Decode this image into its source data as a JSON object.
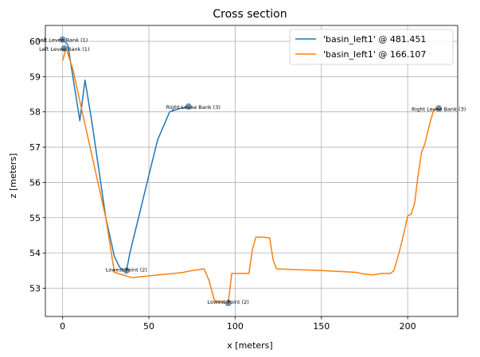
{
  "chart_data": {
    "type": "line",
    "title": "Cross section",
    "xlabel": "x [meters]",
    "ylabel": "z [meters]",
    "xlim": [
      -10,
      229
    ],
    "ylim": [
      52.2,
      60.45
    ],
    "xticks": [
      0,
      50,
      100,
      150,
      200
    ],
    "yticks": [
      53,
      54,
      55,
      56,
      57,
      58,
      59,
      60
    ],
    "grid": true,
    "legend_position": "top-right",
    "series": [
      {
        "name": "'basin_left1' @ 481.451",
        "color": "#1f77b4",
        "x": [
          0,
          3,
          10,
          13,
          17,
          20,
          25,
          30,
          33,
          35,
          37,
          39,
          41,
          45,
          50,
          55,
          62,
          68,
          73
        ],
        "y": [
          60.05,
          59.9,
          57.75,
          58.9,
          57.7,
          56.7,
          55.0,
          53.9,
          53.6,
          53.5,
          53.5,
          54.0,
          54.4,
          55.2,
          56.2,
          57.2,
          58.0,
          58.1,
          58.15
        ]
      },
      {
        "name": "'basin_left1' @ 166.107",
        "color": "#ff7f0e",
        "x": [
          0,
          2,
          6,
          10,
          15,
          20,
          25,
          30,
          40,
          50,
          60,
          65,
          70,
          75,
          78,
          82,
          85,
          88,
          92,
          96,
          98,
          103,
          106,
          108,
          110,
          112,
          116,
          120,
          122,
          124,
          150,
          170,
          175,
          180,
          185,
          190,
          192,
          195,
          198,
          200,
          202,
          204,
          206,
          208,
          210,
          213,
          215,
          218
        ],
        "y": [
          59.45,
          59.8,
          59.2,
          58.3,
          57.2,
          56.1,
          55.0,
          53.45,
          53.3,
          53.35,
          53.4,
          53.42,
          53.45,
          53.5,
          53.52,
          53.55,
          53.2,
          52.65,
          52.62,
          52.58,
          53.42,
          53.42,
          53.42,
          53.42,
          54.1,
          54.45,
          54.45,
          54.43,
          53.8,
          53.55,
          53.5,
          53.45,
          53.4,
          53.38,
          53.42,
          53.42,
          53.5,
          54.0,
          54.6,
          55.05,
          55.1,
          55.4,
          56.2,
          56.85,
          57.1,
          57.7,
          58.05,
          58.1
        ]
      }
    ],
    "markers": [
      {
        "x": 0,
        "y": 60.05,
        "color": "#5a7fa0",
        "label": "Left Levee Bank (1)",
        "anchor": "middle",
        "dx": 0,
        "dy": 0
      },
      {
        "x": 1,
        "y": 59.8,
        "color": "#5a7fa0",
        "label": "Left Levee Bank (1)",
        "anchor": "middle",
        "dx": 0,
        "dy": 0
      },
      {
        "x": 73,
        "y": 58.15,
        "color": "#5a7fa0",
        "label": "Right Levee Bank (3)",
        "anchor": "end",
        "dx": 40,
        "dy": 0
      },
      {
        "x": 37,
        "y": 53.5,
        "color": "#5a7fa0",
        "label": "Lowest Point (2)",
        "anchor": "middle",
        "dx": 0,
        "dy": -2
      },
      {
        "x": 96,
        "y": 52.58,
        "color": "#5a7fa0",
        "label": "Lowest Point (2)",
        "anchor": "middle",
        "dx": 0,
        "dy": -2
      },
      {
        "x": 218,
        "y": 58.1,
        "color": "#5a7fa0",
        "label": "Right Levee Bank (3)",
        "anchor": "middle",
        "dx": 0,
        "dy": 0
      }
    ]
  }
}
